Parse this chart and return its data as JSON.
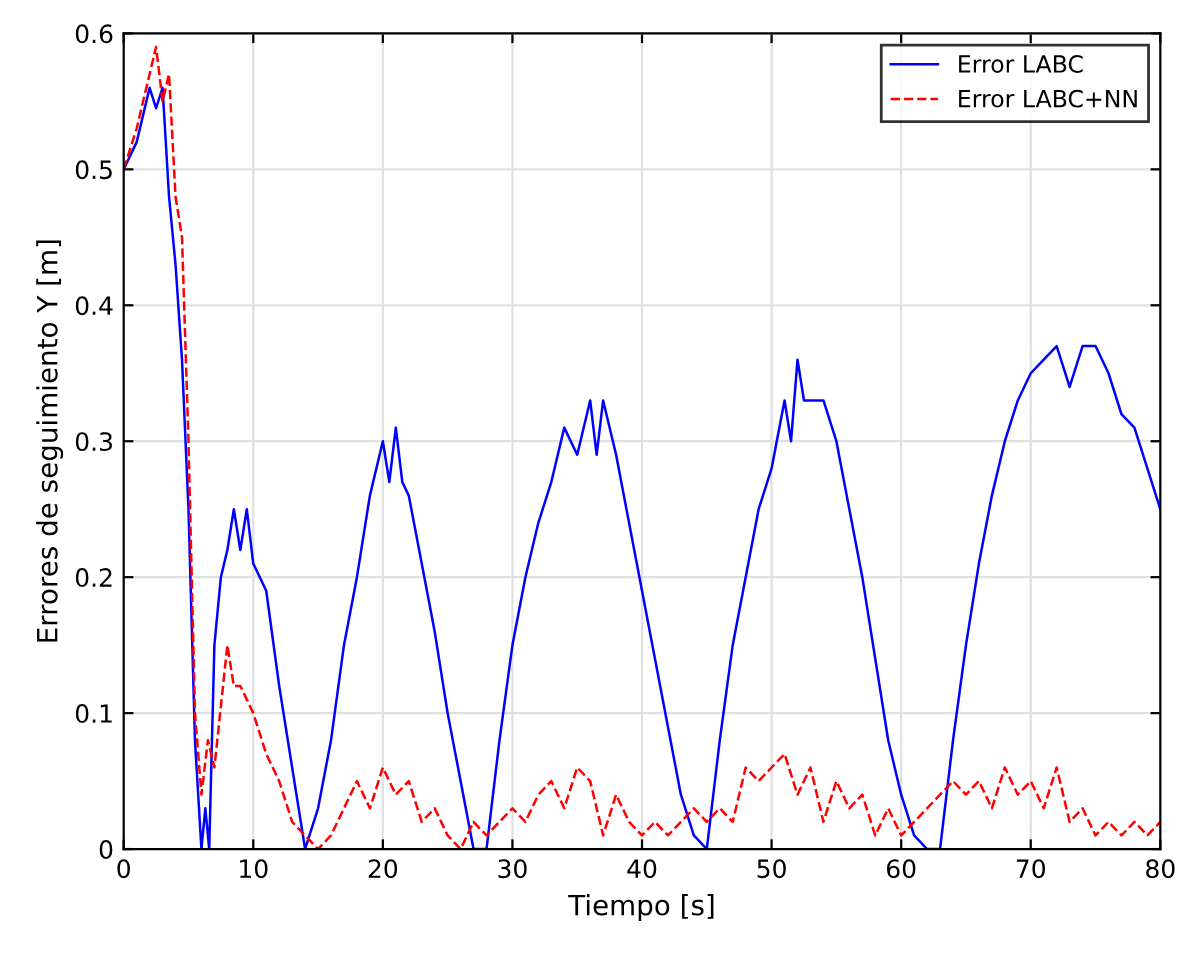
{
  "chart_data": {
    "type": "line",
    "xlabel": "Tiempo [s]",
    "ylabel": "Errores de seguimiento Y [m]",
    "xlim": [
      0,
      80
    ],
    "ylim": [
      0,
      0.6
    ],
    "xticks": [
      0,
      10,
      20,
      30,
      40,
      50,
      60,
      70,
      80
    ],
    "yticks": [
      0,
      0.1,
      0.2,
      0.3,
      0.4,
      0.5,
      0.6
    ],
    "grid": true,
    "legend": "top right",
    "series": [
      {
        "name": "Error LABC",
        "color": "#0000ff",
        "line_style": "solid",
        "x": [
          0,
          1,
          2,
          2.5,
          3,
          3.5,
          4,
          4.5,
          5,
          5.5,
          6,
          6.3,
          6.6,
          7,
          7.5,
          8,
          8.5,
          9,
          9.5,
          10,
          11,
          12,
          13,
          14,
          15,
          16,
          17,
          18,
          19,
          20,
          20.5,
          21,
          21.5,
          22,
          23,
          24,
          25,
          26,
          27,
          28,
          29,
          30,
          31,
          32,
          33,
          34,
          35,
          36,
          36.5,
          37,
          38,
          39,
          40,
          41,
          42,
          43,
          44,
          45,
          46,
          47,
          48,
          49,
          50,
          51,
          51.5,
          52,
          52.5,
          53,
          54,
          55,
          56,
          57,
          58,
          59,
          60,
          61,
          62,
          63,
          64,
          65,
          66,
          67,
          68,
          69,
          70,
          71,
          72,
          73,
          74,
          75,
          76,
          77,
          78,
          79,
          80
        ],
        "values": [
          0.5,
          0.52,
          0.56,
          0.545,
          0.56,
          0.48,
          0.43,
          0.36,
          0.25,
          0.08,
          0.0,
          0.03,
          0.0,
          0.15,
          0.2,
          0.22,
          0.25,
          0.22,
          0.25,
          0.21,
          0.19,
          0.12,
          0.06,
          0.0,
          0.03,
          0.08,
          0.15,
          0.2,
          0.26,
          0.3,
          0.27,
          0.31,
          0.27,
          0.26,
          0.21,
          0.16,
          0.1,
          0.05,
          0.0,
          0.0,
          0.08,
          0.15,
          0.2,
          0.24,
          0.27,
          0.31,
          0.29,
          0.33,
          0.29,
          0.33,
          0.29,
          0.24,
          0.19,
          0.14,
          0.09,
          0.04,
          0.01,
          0.0,
          0.08,
          0.15,
          0.2,
          0.25,
          0.28,
          0.33,
          0.3,
          0.36,
          0.33,
          0.33,
          0.33,
          0.3,
          0.25,
          0.2,
          0.14,
          0.08,
          0.04,
          0.01,
          0.0,
          0.0,
          0.08,
          0.15,
          0.21,
          0.26,
          0.3,
          0.33,
          0.35,
          0.36,
          0.37,
          0.34,
          0.37,
          0.37,
          0.35,
          0.32,
          0.31,
          0.28,
          0.25
        ]
      },
      {
        "name": "Error LABC+NN",
        "color": "#ff0000",
        "line_style": "dashed",
        "x": [
          0,
          1,
          2,
          2.5,
          3,
          3.5,
          4,
          4.5,
          5,
          5.5,
          6,
          6.5,
          7,
          8,
          8.5,
          9,
          10,
          11,
          12,
          13,
          14,
          15,
          16,
          17,
          18,
          19,
          20,
          21,
          22,
          23,
          24,
          25,
          26,
          27,
          28,
          29,
          30,
          31,
          32,
          33,
          34,
          35,
          36,
          37,
          38,
          39,
          40,
          41,
          42,
          43,
          44,
          45,
          46,
          47,
          48,
          49,
          50,
          51,
          52,
          53,
          54,
          55,
          56,
          57,
          58,
          59,
          60,
          61,
          62,
          63,
          64,
          65,
          66,
          67,
          68,
          69,
          70,
          71,
          72,
          73,
          74,
          75,
          76,
          77,
          78,
          79,
          80
        ],
        "values": [
          0.5,
          0.53,
          0.57,
          0.59,
          0.55,
          0.57,
          0.48,
          0.45,
          0.3,
          0.1,
          0.04,
          0.08,
          0.06,
          0.15,
          0.12,
          0.12,
          0.1,
          0.07,
          0.05,
          0.02,
          0.01,
          0.0,
          0.01,
          0.03,
          0.05,
          0.03,
          0.06,
          0.04,
          0.05,
          0.02,
          0.03,
          0.01,
          0.0,
          0.02,
          0.01,
          0.02,
          0.03,
          0.02,
          0.04,
          0.05,
          0.03,
          0.06,
          0.05,
          0.01,
          0.04,
          0.02,
          0.01,
          0.02,
          0.01,
          0.02,
          0.03,
          0.02,
          0.03,
          0.02,
          0.06,
          0.05,
          0.06,
          0.07,
          0.04,
          0.06,
          0.02,
          0.05,
          0.03,
          0.04,
          0.01,
          0.03,
          0.01,
          0.02,
          0.03,
          0.04,
          0.05,
          0.04,
          0.05,
          0.03,
          0.06,
          0.04,
          0.05,
          0.03,
          0.06,
          0.02,
          0.03,
          0.01,
          0.02,
          0.01,
          0.02,
          0.01,
          0.02
        ]
      }
    ]
  }
}
